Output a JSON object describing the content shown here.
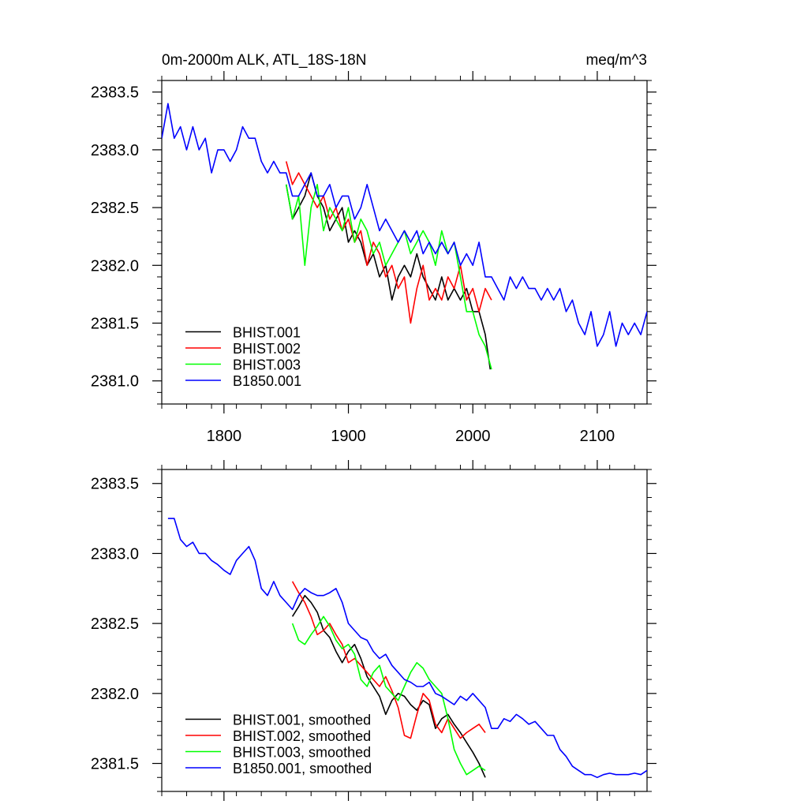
{
  "chart_data": [
    {
      "type": "line",
      "title_left": "0m-2000m ALK, ATL_18S-18N",
      "title_right": "meq/m^3",
      "xlim": [
        1750,
        2140
      ],
      "ylim": [
        2380.8,
        2383.6
      ],
      "xticks": [
        1800,
        1900,
        2000,
        2100
      ],
      "xtick_labels": [
        "1800",
        "1900",
        "2000",
        "2100"
      ],
      "yticks": [
        2381.0,
        2381.5,
        2382.0,
        2382.5,
        2383.0,
        2383.5
      ],
      "ytick_labels": [
        "2381.0",
        "2381.5",
        "2382.0",
        "2382.5",
        "2383.0",
        "2383.5"
      ],
      "legend_position": "bottom-left",
      "series": [
        {
          "name": "BHIST.001",
          "color": "#000000",
          "x": [
            1850,
            1855,
            1860,
            1865,
            1870,
            1875,
            1880,
            1885,
            1890,
            1895,
            1900,
            1905,
            1910,
            1915,
            1920,
            1925,
            1930,
            1935,
            1940,
            1945,
            1950,
            1955,
            1960,
            1965,
            1970,
            1975,
            1980,
            1985,
            1990,
            1995,
            2000,
            2005,
            2010,
            2014
          ],
          "y": [
            2382.7,
            2382.4,
            2382.5,
            2382.6,
            2382.8,
            2382.6,
            2382.5,
            2382.3,
            2382.4,
            2382.5,
            2382.2,
            2382.3,
            2382.2,
            2382.0,
            2382.1,
            2381.9,
            2382.0,
            2381.7,
            2381.9,
            2382.0,
            2381.9,
            2382.1,
            2381.9,
            2381.8,
            2381.7,
            2381.9,
            2381.7,
            2381.8,
            2381.7,
            2381.8,
            2381.6,
            2381.6,
            2381.4,
            2381.1
          ]
        },
        {
          "name": "BHIST.002",
          "color": "#ff0000",
          "x": [
            1850,
            1855,
            1860,
            1865,
            1870,
            1875,
            1880,
            1885,
            1890,
            1895,
            1900,
            1905,
            1910,
            1915,
            1920,
            1925,
            1930,
            1935,
            1940,
            1945,
            1950,
            1955,
            1960,
            1965,
            1970,
            1975,
            1980,
            1985,
            1990,
            1995,
            2000,
            2005,
            2010,
            2015
          ],
          "y": [
            2382.9,
            2382.7,
            2382.8,
            2382.7,
            2382.6,
            2382.5,
            2382.6,
            2382.4,
            2382.5,
            2382.3,
            2382.4,
            2382.2,
            2382.3,
            2382.0,
            2382.2,
            2382.1,
            2381.9,
            2382.0,
            2381.8,
            2381.9,
            2381.5,
            2381.8,
            2382.0,
            2381.7,
            2381.8,
            2381.7,
            2381.9,
            2381.8,
            2382.0,
            2381.7,
            2381.8,
            2381.6,
            2381.8,
            2381.7
          ]
        },
        {
          "name": "BHIST.003",
          "color": "#00ff00",
          "x": [
            1850,
            1855,
            1860,
            1865,
            1870,
            1875,
            1880,
            1885,
            1890,
            1895,
            1900,
            1905,
            1910,
            1915,
            1920,
            1925,
            1930,
            1935,
            1940,
            1945,
            1950,
            1955,
            1960,
            1965,
            1970,
            1975,
            1980,
            1985,
            1990,
            1995,
            2000,
            2005,
            2010,
            2015
          ],
          "y": [
            2382.7,
            2382.4,
            2382.6,
            2382.0,
            2382.5,
            2382.7,
            2382.3,
            2382.5,
            2382.4,
            2382.3,
            2382.5,
            2382.2,
            2382.4,
            2382.3,
            2382.1,
            2382.2,
            2382.0,
            2382.1,
            2382.2,
            2382.3,
            2382.1,
            2382.2,
            2382.3,
            2382.2,
            2382.0,
            2382.3,
            2382.1,
            2382.2,
            2381.9,
            2381.6,
            2381.6,
            2381.4,
            2381.3,
            2381.1
          ]
        },
        {
          "name": "B1850.001",
          "color": "#0000ff",
          "x": [
            1750,
            1755,
            1760,
            1765,
            1770,
            1775,
            1780,
            1785,
            1790,
            1795,
            1800,
            1805,
            1810,
            1815,
            1820,
            1825,
            1830,
            1835,
            1840,
            1845,
            1850,
            1855,
            1860,
            1865,
            1870,
            1875,
            1880,
            1885,
            1890,
            1895,
            1900,
            1905,
            1910,
            1915,
            1920,
            1925,
            1930,
            1935,
            1940,
            1945,
            1950,
            1955,
            1960,
            1965,
            1970,
            1975,
            1980,
            1985,
            1990,
            1995,
            2000,
            2005,
            2010,
            2015,
            2020,
            2025,
            2030,
            2035,
            2040,
            2045,
            2050,
            2055,
            2060,
            2065,
            2070,
            2075,
            2080,
            2085,
            2090,
            2095,
            2100,
            2105,
            2110,
            2115,
            2120,
            2125,
            2130,
            2135,
            2140
          ],
          "y": [
            2383.1,
            2383.4,
            2383.1,
            2383.2,
            2383.0,
            2383.2,
            2383.0,
            2383.1,
            2382.8,
            2383.0,
            2383.0,
            2382.9,
            2383.0,
            2383.2,
            2383.1,
            2383.1,
            2382.9,
            2382.8,
            2382.9,
            2382.8,
            2382.8,
            2382.6,
            2382.6,
            2382.7,
            2382.8,
            2382.6,
            2382.6,
            2382.7,
            2382.5,
            2382.6,
            2382.6,
            2382.4,
            2382.5,
            2382.7,
            2382.5,
            2382.3,
            2382.4,
            2382.3,
            2382.2,
            2382.3,
            2382.2,
            2382.3,
            2382.1,
            2382.2,
            2382.1,
            2382.2,
            2382.1,
            2382.2,
            2382.0,
            2382.1,
            2382.0,
            2382.2,
            2381.9,
            2381.9,
            2381.8,
            2381.7,
            2381.9,
            2381.8,
            2381.9,
            2381.8,
            2381.8,
            2381.7,
            2381.8,
            2381.7,
            2381.8,
            2381.6,
            2381.7,
            2381.5,
            2381.4,
            2381.6,
            2381.3,
            2381.4,
            2381.6,
            2381.3,
            2381.5,
            2381.4,
            2381.5,
            2381.4,
            2381.6
          ]
        }
      ]
    },
    {
      "type": "line",
      "title_left": "",
      "title_right": "",
      "xlim": [
        1750,
        2140
      ],
      "ylim": [
        2381.3,
        2383.6
      ],
      "xticks": [
        1800,
        1900,
        2000,
        2100
      ],
      "xtick_labels": [],
      "yticks": [
        2381.5,
        2382.0,
        2382.5,
        2383.0,
        2383.5
      ],
      "ytick_labels": [
        "2381.5",
        "2382.0",
        "2382.5",
        "2383.0",
        "2383.5"
      ],
      "legend_position": "bottom-left",
      "series": [
        {
          "name": "BHIST.001, smoothed",
          "color": "#000000",
          "x": [
            1855,
            1860,
            1865,
            1870,
            1875,
            1880,
            1885,
            1890,
            1895,
            1900,
            1905,
            1910,
            1915,
            1920,
            1925,
            1930,
            1935,
            1940,
            1945,
            1950,
            1955,
            1960,
            1965,
            1970,
            1975,
            1980,
            1985,
            1990,
            1995,
            2000,
            2005,
            2010
          ],
          "y": [
            2382.55,
            2382.62,
            2382.7,
            2382.65,
            2382.58,
            2382.45,
            2382.4,
            2382.3,
            2382.22,
            2382.3,
            2382.35,
            2382.25,
            2382.12,
            2382.05,
            2381.98,
            2381.85,
            2381.95,
            2382.0,
            2381.98,
            2381.92,
            2381.88,
            2381.95,
            2381.92,
            2381.75,
            2381.82,
            2381.85,
            2381.78,
            2381.72,
            2381.65,
            2381.58,
            2381.5,
            2381.4
          ]
        },
        {
          "name": "BHIST.002, smoothed",
          "color": "#ff0000",
          "x": [
            1855,
            1860,
            1865,
            1870,
            1875,
            1880,
            1885,
            1890,
            1895,
            1900,
            1905,
            1910,
            1915,
            1920,
            1925,
            1930,
            1935,
            1940,
            1945,
            1950,
            1955,
            1960,
            1965,
            1970,
            1975,
            1980,
            1985,
            1990,
            1995,
            2000,
            2005,
            2010
          ],
          "y": [
            2382.8,
            2382.72,
            2382.65,
            2382.55,
            2382.42,
            2382.45,
            2382.5,
            2382.42,
            2382.35,
            2382.22,
            2382.25,
            2382.2,
            2382.15,
            2382.1,
            2382.05,
            2382.12,
            2382.02,
            2381.9,
            2381.7,
            2381.68,
            2381.85,
            2382.0,
            2381.95,
            2381.78,
            2381.72,
            2381.82,
            2381.75,
            2381.68,
            2381.72,
            2381.75,
            2381.78,
            2381.72
          ]
        },
        {
          "name": "BHIST.003, smoothed",
          "color": "#00ff00",
          "x": [
            1855,
            1860,
            1865,
            1870,
            1875,
            1880,
            1885,
            1890,
            1895,
            1900,
            1905,
            1910,
            1915,
            1920,
            1925,
            1930,
            1935,
            1940,
            1945,
            1950,
            1955,
            1960,
            1965,
            1970,
            1975,
            1980,
            1985,
            1990,
            1995,
            2000,
            2005,
            2010
          ],
          "y": [
            2382.5,
            2382.38,
            2382.35,
            2382.42,
            2382.48,
            2382.55,
            2382.48,
            2382.38,
            2382.32,
            2382.35,
            2382.28,
            2382.1,
            2382.05,
            2382.15,
            2382.2,
            2382.05,
            2382.0,
            2381.95,
            2382.05,
            2382.15,
            2382.22,
            2382.18,
            2382.1,
            2382.05,
            2382.0,
            2381.82,
            2381.6,
            2381.5,
            2381.42,
            2381.45,
            2381.48,
            2381.45
          ]
        },
        {
          "name": "B1850.001, smoothed",
          "color": "#0000ff",
          "x": [
            1755,
            1760,
            1765,
            1770,
            1775,
            1780,
            1785,
            1790,
            1795,
            1800,
            1805,
            1810,
            1815,
            1820,
            1825,
            1830,
            1835,
            1840,
            1845,
            1850,
            1855,
            1860,
            1865,
            1870,
            1875,
            1880,
            1885,
            1890,
            1895,
            1900,
            1905,
            1910,
            1915,
            1920,
            1925,
            1930,
            1935,
            1940,
            1945,
            1950,
            1955,
            1960,
            1965,
            1970,
            1975,
            1980,
            1985,
            1990,
            1995,
            2000,
            2005,
            2010,
            2015,
            2020,
            2025,
            2030,
            2035,
            2040,
            2045,
            2050,
            2055,
            2060,
            2065,
            2070,
            2075,
            2080,
            2085,
            2090,
            2095,
            2100,
            2105,
            2110,
            2115,
            2120,
            2125,
            2130,
            2135,
            2140
          ],
          "y": [
            2383.25,
            2383.25,
            2383.1,
            2383.05,
            2383.08,
            2383.0,
            2383.0,
            2382.95,
            2382.92,
            2382.88,
            2382.85,
            2382.95,
            2383.0,
            2383.05,
            2382.95,
            2382.75,
            2382.7,
            2382.8,
            2382.7,
            2382.65,
            2382.6,
            2382.7,
            2382.75,
            2382.72,
            2382.7,
            2382.7,
            2382.72,
            2382.75,
            2382.65,
            2382.5,
            2382.45,
            2382.4,
            2382.38,
            2382.3,
            2382.25,
            2382.28,
            2382.2,
            2382.15,
            2382.1,
            2382.08,
            2382.05,
            2382.05,
            2382.08,
            2382.0,
            2381.98,
            2381.95,
            2381.92,
            2381.98,
            2381.95,
            2382.0,
            2381.95,
            2381.9,
            2381.75,
            2381.75,
            2381.82,
            2381.8,
            2381.85,
            2381.82,
            2381.78,
            2381.8,
            2381.75,
            2381.7,
            2381.7,
            2381.6,
            2381.55,
            2381.48,
            2381.45,
            2381.42,
            2381.42,
            2381.4,
            2381.42,
            2381.43,
            2381.42,
            2381.42,
            2381.42,
            2381.43,
            2381.42,
            2381.45
          ]
        }
      ]
    }
  ]
}
